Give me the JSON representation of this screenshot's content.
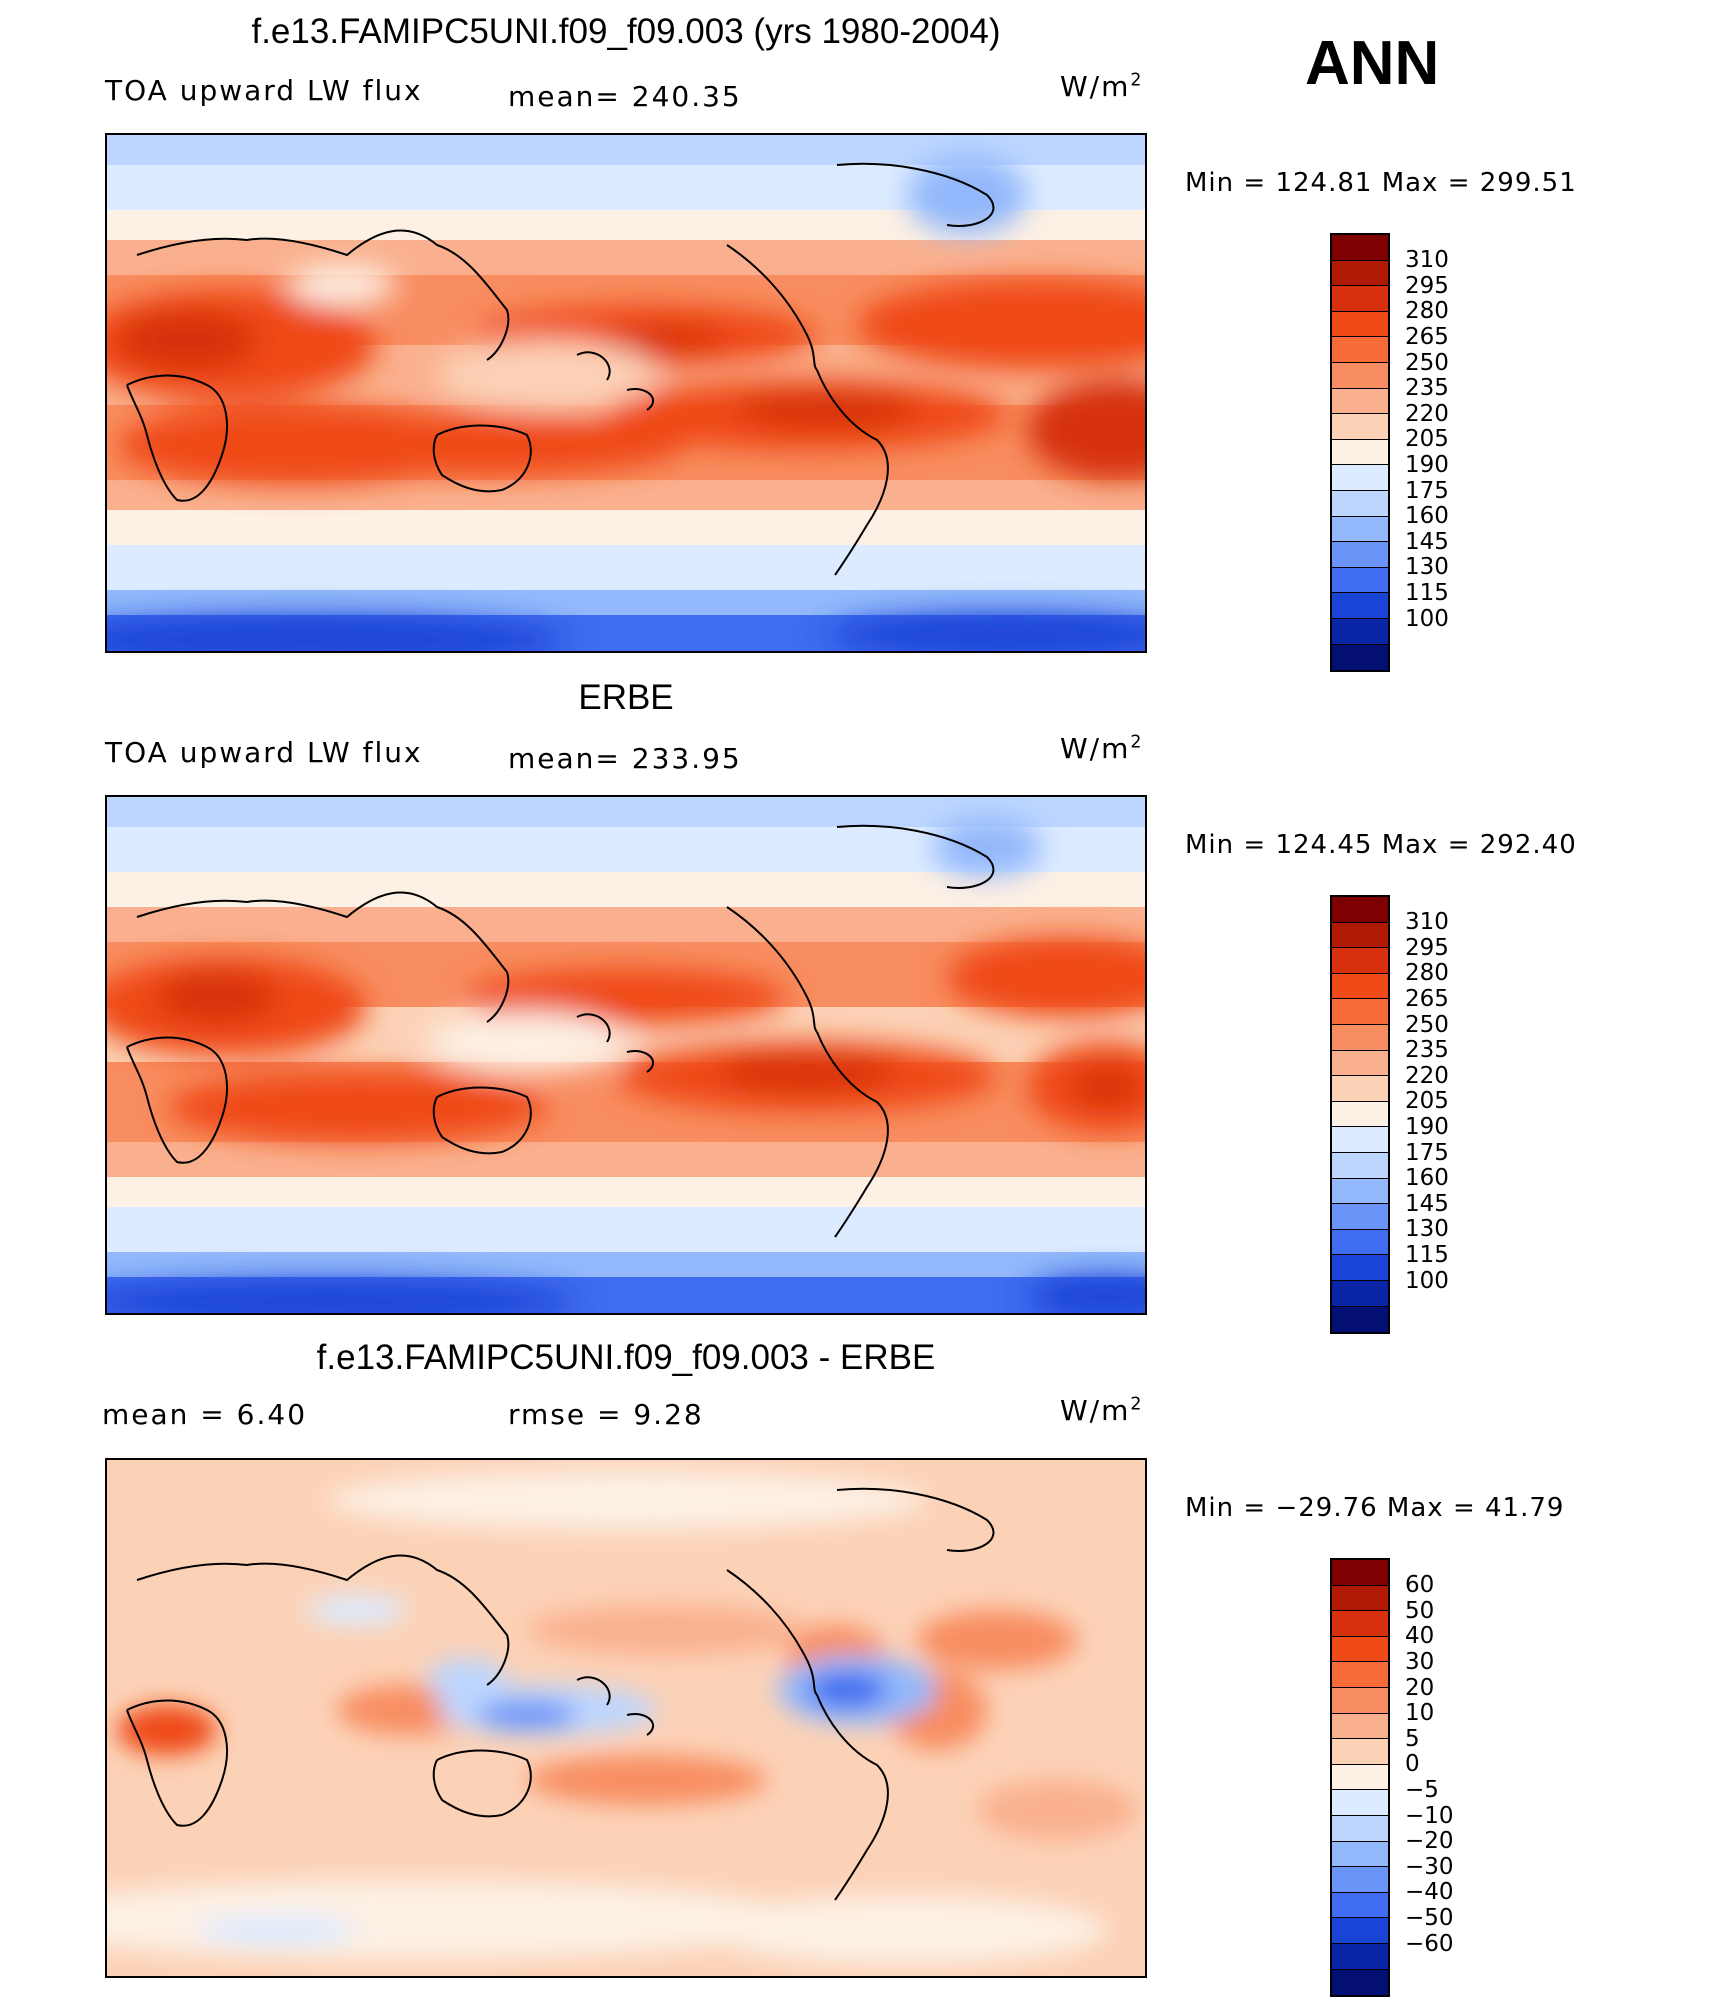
{
  "season": "ANN",
  "panels": [
    {
      "title": "f.e13.FAMIPC5UNI.f09_f09.003 (yrs 1980-2004)",
      "left_label": "TOA upward LW flux",
      "center_label": "mean=  240.35",
      "units_base": "W/m",
      "units_exp": "2",
      "minmax": "Min  =  124.81  Max  =  299.51",
      "ticks": [
        "310",
        "295",
        "280",
        "265",
        "250",
        "235",
        "220",
        "205",
        "190",
        "175",
        "160",
        "145",
        "130",
        "115",
        "100"
      ]
    },
    {
      "title": "ERBE",
      "left_label": "TOA upward LW flux",
      "center_label": "mean=  233.95",
      "units_base": "W/m",
      "units_exp": "2",
      "minmax": "Min  =  124.45  Max  =  292.40",
      "ticks": [
        "310",
        "295",
        "280",
        "265",
        "250",
        "235",
        "220",
        "205",
        "190",
        "175",
        "160",
        "145",
        "130",
        "115",
        "100"
      ]
    },
    {
      "title": "f.e13.FAMIPC5UNI.f09_f09.003 - ERBE",
      "left_label": "mean  =     6.40",
      "center_label": "rmse  =     9.28",
      "units_base": "W/m",
      "units_exp": "2",
      "minmax": "Min  =  −29.76  Max  =    41.79",
      "ticks": [
        "60",
        "50",
        "40",
        "30",
        "20",
        "10",
        "5",
        "0",
        "−5",
        "−10",
        "−20",
        "−30",
        "−40",
        "−50",
        "−60"
      ]
    }
  ],
  "colors": {
    "scale": [
      "#7f0000",
      "#b01a05",
      "#d6300c",
      "#ef4a17",
      "#f66b38",
      "#f88d61",
      "#fab08e",
      "#fcd2b7",
      "#fdf0e4",
      "#dcebff",
      "#bcd6ff",
      "#93b8fb",
      "#6a94f7",
      "#3f6cf0",
      "#1a44d6",
      "#0a25a8",
      "#040f73"
    ]
  }
}
